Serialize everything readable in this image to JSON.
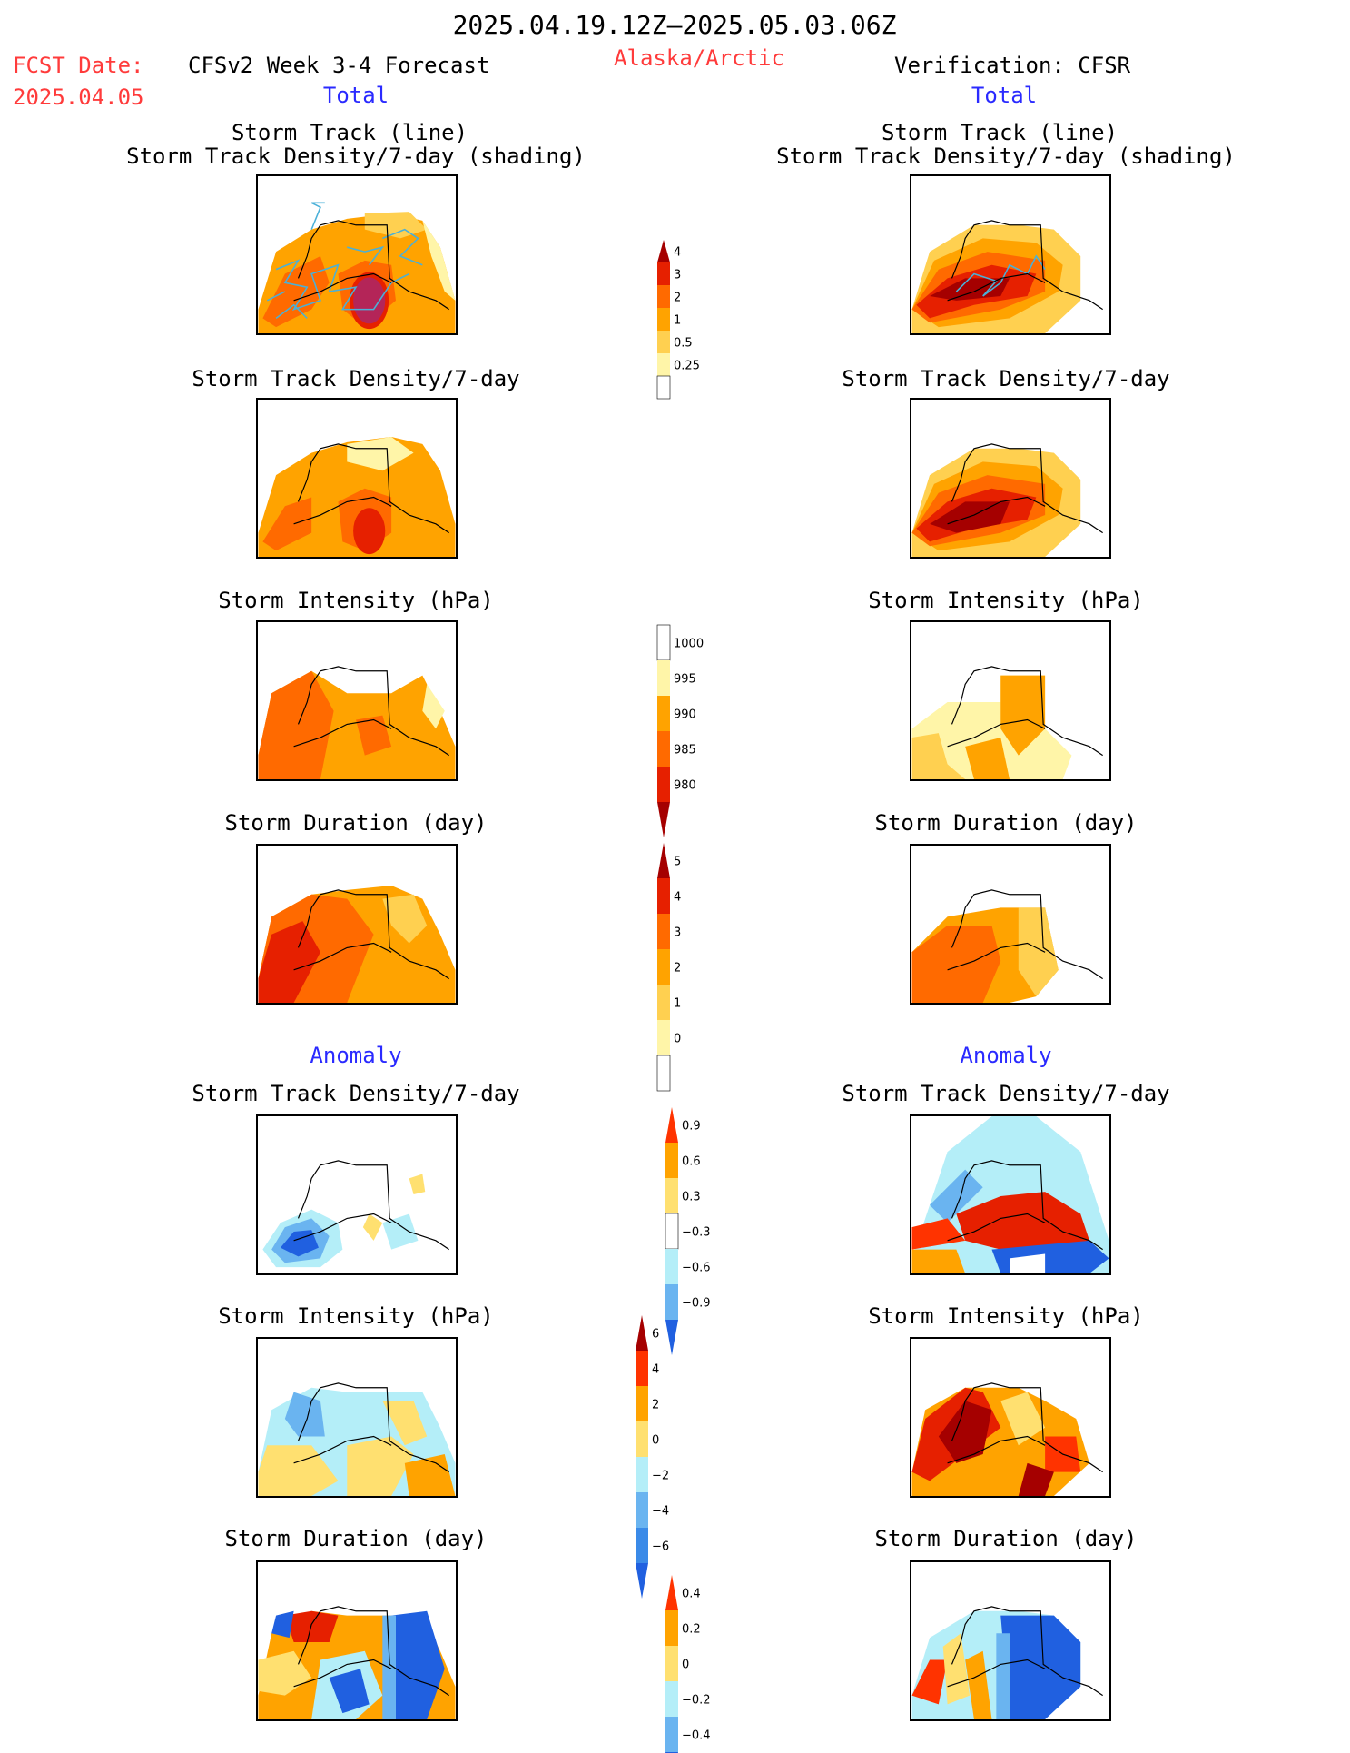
{
  "header": {
    "date_range": "2025.04.19.12Z–2025.05.03.06Z",
    "fcst_date_label": "FCST Date:",
    "fcst_date_value": "2025.04.05",
    "model_title": "CFSv2 Week 3-4 Forecast",
    "region": "Alaska/Arctic",
    "verification": "Verification: CFSR",
    "left_total": "Total",
    "right_total": "Total",
    "left_anomaly": "Anomaly",
    "right_anomaly": "Anomaly"
  },
  "panels": {
    "track_line": "Storm Track (line)",
    "track_shading": "Storm Track Density/7-day (shading)",
    "density": "Storm Track Density/7-day",
    "intensity": "Storm Intensity (hPa)",
    "duration": "Storm Duration (day)"
  },
  "colorbars": {
    "density_total": {
      "ticks": [
        "4",
        "3",
        "2",
        "1",
        "0.5",
        "0.25"
      ],
      "colors": [
        "#a50000",
        "#e62000",
        "#ff6a00",
        "#ffa300",
        "#ffd050",
        "#fff5a8",
        "#ffffff"
      ]
    },
    "intensity_total": {
      "ticks": [
        "1000",
        "995",
        "990",
        "985",
        "980"
      ],
      "colors": [
        "#ffffff",
        "#fff5a8",
        "#ffa300",
        "#ff6a00",
        "#e62000",
        "#a50000"
      ]
    },
    "duration_total": {
      "ticks": [
        "5",
        "4",
        "3",
        "2",
        "1",
        "0"
      ],
      "colors": [
        "#a50000",
        "#e62000",
        "#ff6a00",
        "#ffa300",
        "#ffd050",
        "#fff5a8",
        "#ffffff"
      ]
    },
    "density_anom": {
      "ticks": [
        "0.9",
        "0.6",
        "0.3",
        "−0.3",
        "−0.6",
        "−0.9"
      ],
      "colors": [
        "#ff3300",
        "#ffa300",
        "#ffe070",
        "#ffffff",
        "#b4eef8",
        "#6ab4f0",
        "#2060e0"
      ]
    },
    "intensity_anom": {
      "ticks": [
        "6",
        "4",
        "2",
        "0",
        "−2",
        "−4",
        "−6"
      ],
      "colors": [
        "#a50000",
        "#ff3300",
        "#ffa300",
        "#ffe070",
        "#b4eef8",
        "#6ab4f0",
        "#3a8ae8",
        "#2060e0"
      ]
    },
    "duration_anom": {
      "ticks": [
        "0.4",
        "0.2",
        "0",
        "−0.2",
        "−0.4"
      ],
      "colors": [
        "#ff3300",
        "#ffa300",
        "#ffe070",
        "#b4eef8",
        "#6ab4f0",
        "#2060e0"
      ]
    }
  }
}
